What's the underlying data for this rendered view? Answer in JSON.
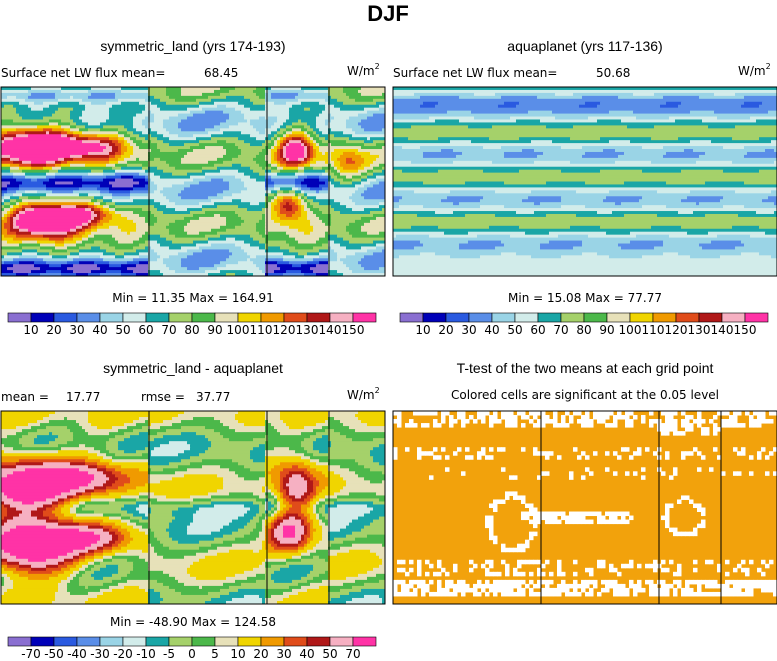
{
  "title": "DJF",
  "colors": {
    "seq": [
      "#8a6fd1",
      "#0000b8",
      "#2a5ae0",
      "#5a8ee8",
      "#9ad4e6",
      "#d2ecea",
      "#1aa6a6",
      "#a5d16a",
      "#4cb84a",
      "#e7e1b9",
      "#f0d500",
      "#f09a00",
      "#e04c1a",
      "#b01818",
      "#f6b0c2",
      "#ff33a6"
    ],
    "ttest": "#f2a20c",
    "bg": "#ffffff"
  },
  "chart_data": [
    {
      "type": "heatmap",
      "title": "symmetric_land (yrs 174-193)",
      "stat_label": "Surface net LW flux mean=",
      "stat_value": "68.45",
      "units": "W/m",
      "units_sup": "2",
      "min_max": "Min =   11.35 Max =  164.91",
      "colorbar_ticks": [
        "10",
        "20",
        "30",
        "40",
        "50",
        "60",
        "70",
        "80",
        "90",
        "100",
        "110",
        "120",
        "130",
        "140",
        "150"
      ],
      "field": "land",
      "levels": [
        10,
        20,
        30,
        40,
        50,
        60,
        70,
        80,
        90,
        100,
        110,
        120,
        130,
        140,
        150
      ]
    },
    {
      "type": "heatmap",
      "title": "aquaplanet (yrs 117-136)",
      "stat_label": "Surface net LW flux mean=",
      "stat_value": "50.68",
      "units": "W/m",
      "units_sup": "2",
      "min_max": "Min =   15.08 Max =   77.77",
      "colorbar_ticks": [
        "10",
        "20",
        "30",
        "40",
        "50",
        "60",
        "70",
        "80",
        "90",
        "100",
        "110",
        "120",
        "130",
        "140",
        "150"
      ],
      "field": "aqua",
      "levels": [
        10,
        20,
        30,
        40,
        50,
        60,
        70,
        80,
        90,
        100,
        110,
        120,
        130,
        140,
        150
      ]
    },
    {
      "type": "heatmap",
      "title": "symmetric_land - aquaplanet",
      "mean_label": "mean =",
      "mean_value": "17.77",
      "rmse_label": "rmse =",
      "rmse_value": "37.77",
      "units": "W/m",
      "units_sup": "2",
      "min_max": "Min = -48.90 Max =  124.58",
      "colorbar_ticks": [
        "-70",
        "-50",
        "-40",
        "-30",
        "-20",
        "-10",
        "-5",
        "0",
        "5",
        "10",
        "20",
        "30",
        "40",
        "50",
        "70"
      ],
      "field": "diff",
      "levels": [
        -70,
        -50,
        -40,
        -30,
        -20,
        -10,
        -5,
        0,
        5,
        10,
        20,
        30,
        40,
        50,
        70
      ]
    },
    {
      "type": "heatmap",
      "title": "T-test of the two means at each grid point",
      "subtitle": "Colored cells are significant at the 0.05 level",
      "field": "ttest"
    }
  ]
}
